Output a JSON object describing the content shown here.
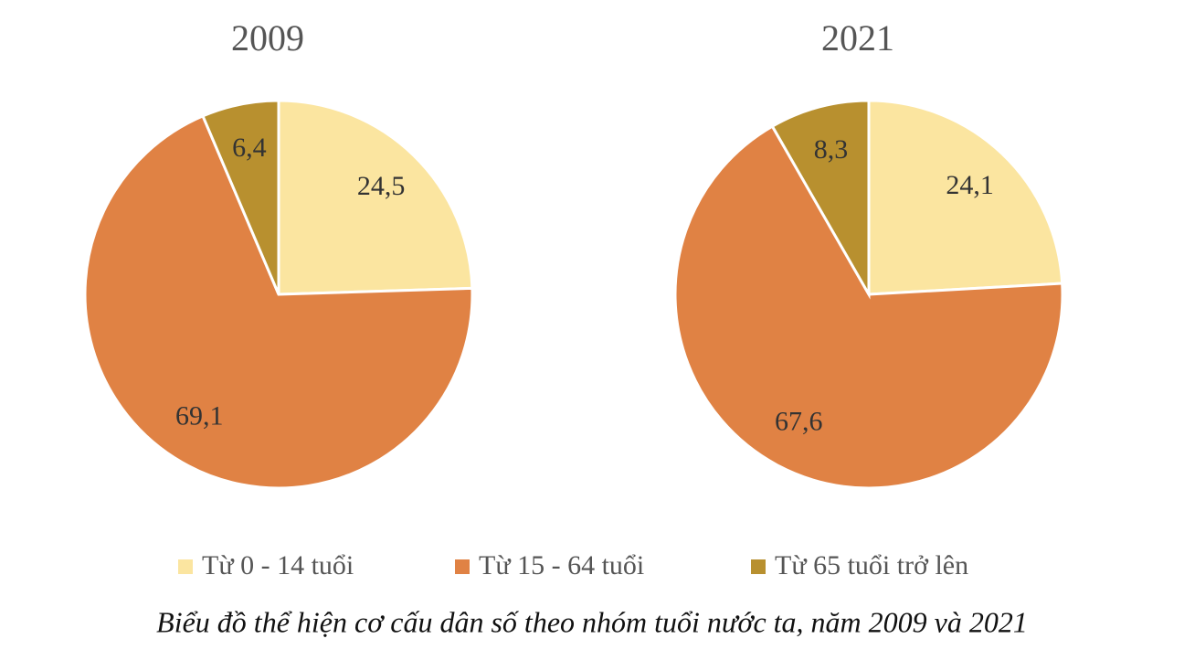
{
  "chart_data": [
    {
      "type": "pie",
      "title": "2009",
      "values": [
        24.5,
        69.1,
        6.4
      ],
      "value_labels": [
        "24,5",
        "69,1",
        "6,4"
      ]
    },
    {
      "type": "pie",
      "title": "2021",
      "values": [
        24.1,
        67.6,
        8.3
      ],
      "value_labels": [
        "24,1",
        "67,6",
        "8,3"
      ]
    }
  ],
  "legend": {
    "categories": [
      "Từ 0 - 14 tuổi",
      "Từ 15 - 64 tuổi",
      "Từ 65 tuổi trở lên"
    ],
    "colors": [
      "#fbe5a0",
      "#e08244",
      "#b8902f"
    ]
  },
  "caption": "Biểu đồ thể hiện cơ cấu dân số theo nhóm tuổi nước ta, năm 2009 và 2021"
}
